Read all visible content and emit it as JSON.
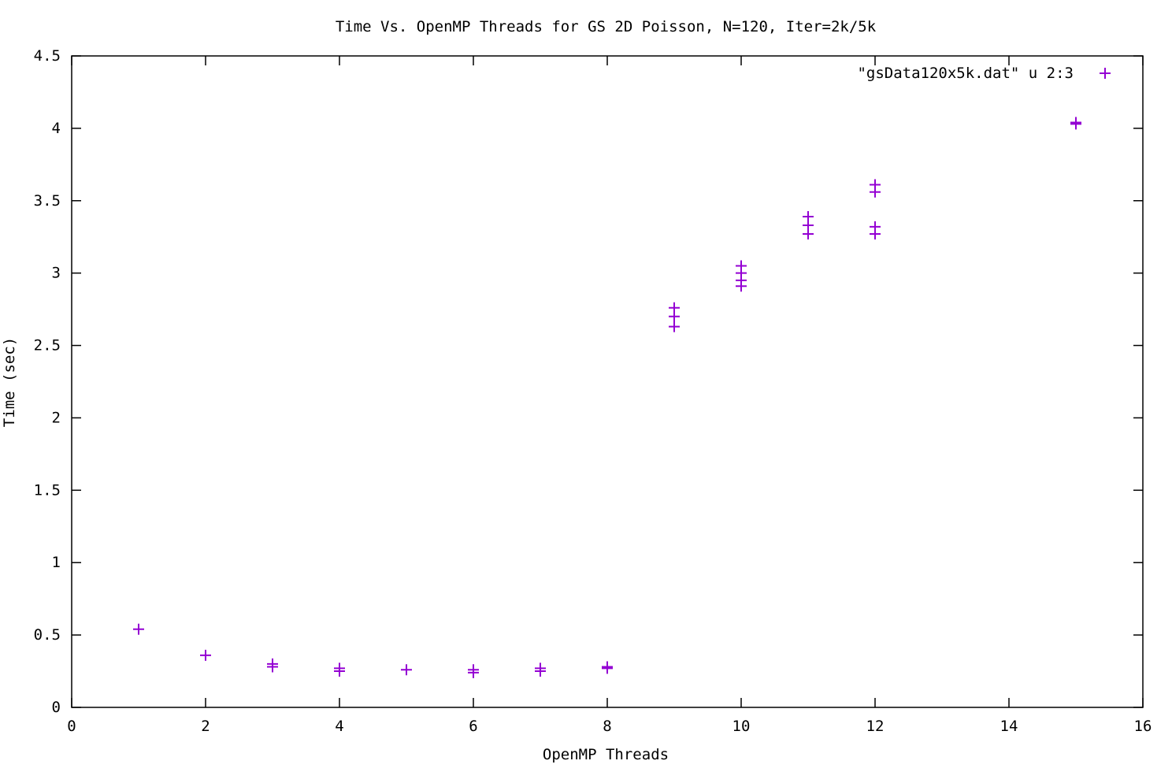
{
  "chart_data": {
    "type": "scatter",
    "title": "Time Vs. OpenMP Threads for GS 2D Poisson, N=120, Iter=2k/5k",
    "xlabel": "OpenMP Threads",
    "ylabel": "Time (sec)",
    "xlim": [
      0,
      16
    ],
    "ylim": [
      0,
      4.5
    ],
    "x_ticks": [
      "0",
      "2",
      "4",
      "6",
      "8",
      "10",
      "12",
      "14",
      "16"
    ],
    "y_ticks": [
      "0",
      "0.5",
      "1",
      "1.5",
      "2",
      "2.5",
      "3",
      "3.5",
      "4",
      "4.5"
    ],
    "grid": false,
    "legend_position": "top-right",
    "marker": "plus",
    "series": [
      {
        "name": "\"gsData120x5k.dat\" u 2:3",
        "color": "#9400d3",
        "points": [
          {
            "x": 1,
            "y": 0.54
          },
          {
            "x": 2,
            "y": 0.36
          },
          {
            "x": 3,
            "y": 0.3
          },
          {
            "x": 3,
            "y": 0.28
          },
          {
            "x": 4,
            "y": 0.27
          },
          {
            "x": 4,
            "y": 0.25
          },
          {
            "x": 5,
            "y": 0.26
          },
          {
            "x": 6,
            "y": 0.26
          },
          {
            "x": 6,
            "y": 0.24
          },
          {
            "x": 7,
            "y": 0.27
          },
          {
            "x": 7,
            "y": 0.25
          },
          {
            "x": 8,
            "y": 0.28
          },
          {
            "x": 8,
            "y": 0.27
          },
          {
            "x": 9,
            "y": 2.76
          },
          {
            "x": 9,
            "y": 2.7
          },
          {
            "x": 9,
            "y": 2.63
          },
          {
            "x": 10,
            "y": 3.05
          },
          {
            "x": 10,
            "y": 3.0
          },
          {
            "x": 10,
            "y": 2.95
          },
          {
            "x": 10,
            "y": 2.91
          },
          {
            "x": 11,
            "y": 3.39
          },
          {
            "x": 11,
            "y": 3.33
          },
          {
            "x": 11,
            "y": 3.27
          },
          {
            "x": 12,
            "y": 3.61
          },
          {
            "x": 12,
            "y": 3.56
          },
          {
            "x": 12,
            "y": 3.32
          },
          {
            "x": 12,
            "y": 3.27
          },
          {
            "x": 15,
            "y": 4.04
          },
          {
            "x": 15,
            "y": 4.03
          }
        ]
      }
    ]
  }
}
